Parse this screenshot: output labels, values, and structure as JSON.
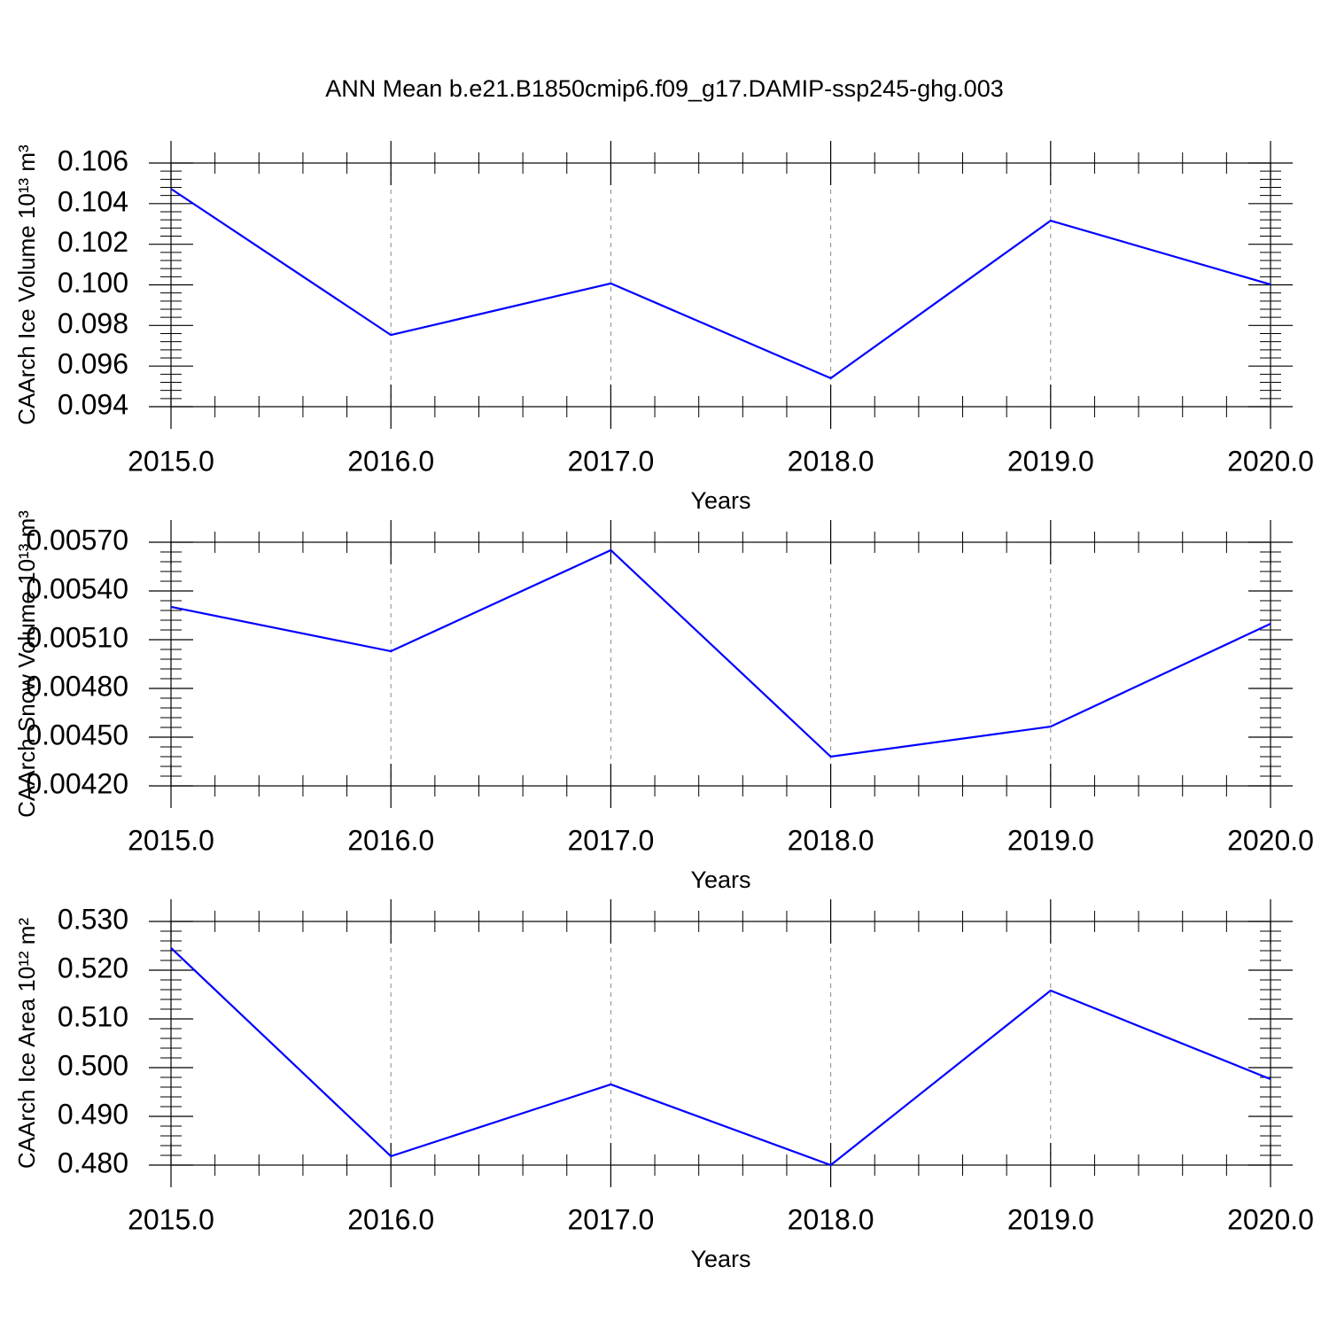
{
  "chart_data": [
    {
      "type": "line",
      "title": "ANN Mean b.e21.B1850cmip6.f09_g17.DAMIP-ssp245-ghg.003",
      "ylabel": "CAArch Ice Volume 10¹³ m³",
      "xlabel": "Years",
      "x": [
        2015,
        2016,
        2017,
        2018,
        2019,
        2020
      ],
      "series": [
        {
          "color": "#0000ff",
          "values": [
            0.10473,
            0.09753,
            0.10007,
            0.0954,
            0.10316,
            0.10002
          ]
        }
      ],
      "xlim": [
        2015,
        2020
      ],
      "xticks": [
        {
          "value": 2015,
          "label": "2015.0"
        },
        {
          "value": 2016,
          "label": "2016.0"
        },
        {
          "value": 2017,
          "label": "2017.0"
        },
        {
          "value": 2018,
          "label": "2018.0"
        },
        {
          "value": 2019,
          "label": "2019.0"
        },
        {
          "value": 2020,
          "label": "2020.0"
        }
      ],
      "ylim": [
        0.094,
        0.106
      ],
      "yticks": [
        0.094,
        0.096,
        0.098,
        {
          "value": 0.1,
          "label": "0.100"
        },
        0.102,
        0.104,
        0.106
      ],
      "grid": true
    },
    {
      "type": "line",
      "ylabel": "CAArch Snow Volume 10¹³ m³",
      "xlabel": "Years",
      "x": [
        2015,
        2016,
        2017,
        2018,
        2019,
        2020
      ],
      "series": [
        {
          "color": "#0000ff",
          "values": [
            0.005302,
            0.005029,
            0.005651,
            0.00438,
            0.004565,
            0.005198
          ]
        }
      ],
      "xlim": [
        2015,
        2020
      ],
      "xticks": [
        {
          "value": 2015,
          "label": "2015.0"
        },
        {
          "value": 2016,
          "label": "2016.0"
        },
        {
          "value": 2017,
          "label": "2017.0"
        },
        {
          "value": 2018,
          "label": "2018.0"
        },
        {
          "value": 2019,
          "label": "2019.0"
        },
        {
          "value": 2020,
          "label": "2020.0"
        }
      ],
      "ylim": [
        0.0042,
        0.0057
      ],
      "yticks": [
        {
          "value": 0.0042,
          "label": "0.00420"
        },
        {
          "value": 0.0045,
          "label": "0.00450"
        },
        {
          "value": 0.0048,
          "label": "0.00480"
        },
        {
          "value": 0.0051,
          "label": "0.00510"
        },
        {
          "value": 0.0054,
          "label": "0.00540"
        },
        {
          "value": 0.0057,
          "label": "0.00570"
        }
      ],
      "grid": true
    },
    {
      "type": "line",
      "ylabel": "CAArch Ice Area 10¹² m²",
      "xlabel": "Years",
      "x": [
        2015,
        2016,
        2017,
        2018,
        2019,
        2020
      ],
      "series": [
        {
          "color": "#0000ff",
          "values": [
            0.52455,
            0.48182,
            0.49655,
            0.48,
            0.51582,
            0.49764
          ]
        }
      ],
      "xlim": [
        2015,
        2020
      ],
      "xticks": [
        {
          "value": 2015,
          "label": "2015.0"
        },
        {
          "value": 2016,
          "label": "2016.0"
        },
        {
          "value": 2017,
          "label": "2017.0"
        },
        {
          "value": 2018,
          "label": "2018.0"
        },
        {
          "value": 2019,
          "label": "2019.0"
        },
        {
          "value": 2020,
          "label": "2020.0"
        }
      ],
      "ylim": [
        0.48,
        0.53
      ],
      "yticks": [
        {
          "value": 0.48,
          "label": "0.480"
        },
        {
          "value": 0.49,
          "label": "0.490"
        },
        {
          "value": 0.5,
          "label": "0.500"
        },
        {
          "value": 0.51,
          "label": "0.510"
        },
        {
          "value": 0.52,
          "label": "0.520"
        },
        {
          "value": 0.53,
          "label": "0.530"
        }
      ],
      "grid": true
    }
  ]
}
